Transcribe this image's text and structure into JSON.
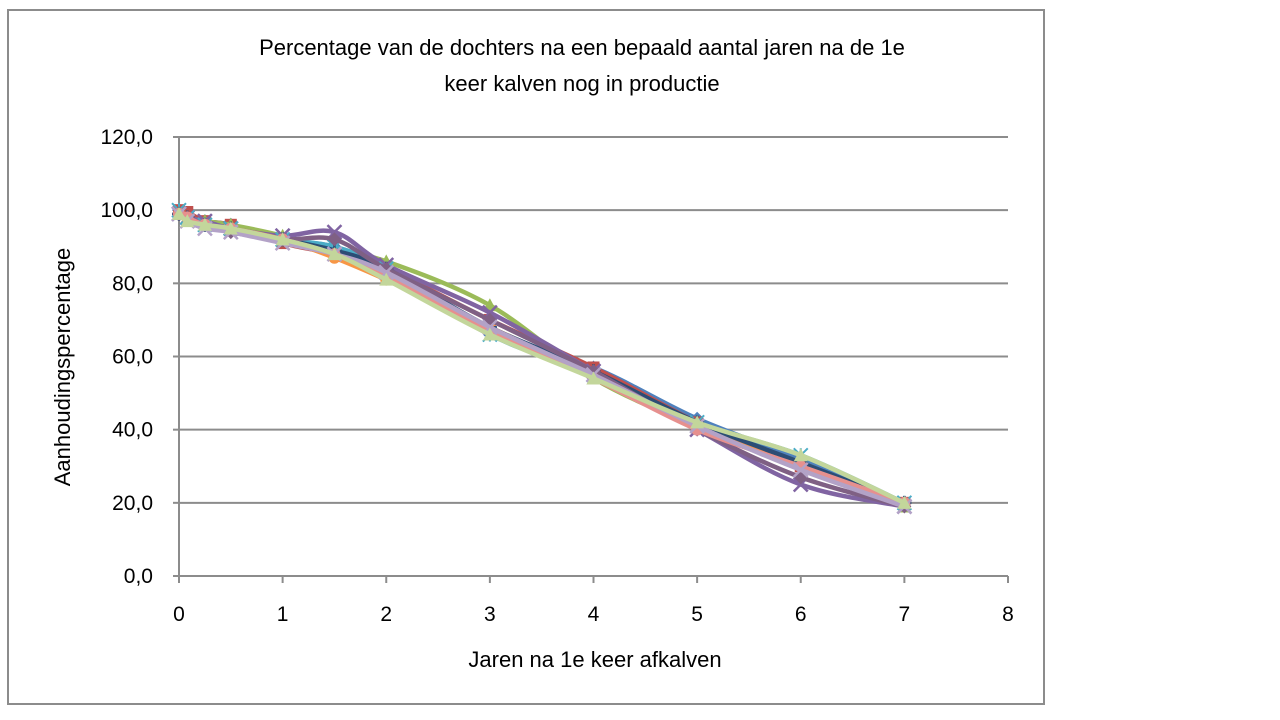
{
  "chart_data": {
    "type": "line",
    "title_lines": [
      "Percentage van de dochters na een bepaald aantal jaren na de 1e",
      "keer kalven nog in productie"
    ],
    "xlabel": "Jaren na 1e keer afkalven",
    "ylabel": "Aanhoudingspercentage",
    "xlim": [
      0,
      8
    ],
    "ylim": [
      0,
      120
    ],
    "x_ticks": [
      "0",
      "1",
      "2",
      "3",
      "4",
      "5",
      "6",
      "7",
      "8"
    ],
    "y_ticks": [
      "0,0",
      "20,0",
      "40,0",
      "60,0",
      "80,0",
      "100,0",
      "120,0"
    ],
    "grid": "horizontal",
    "legend": "none",
    "series": [
      {
        "color": "#4f81bd",
        "marker": "diamond",
        "x": [
          0,
          0.08,
          0.25,
          0.5,
          1,
          1.5,
          2,
          3,
          4,
          5,
          6,
          7
        ],
        "y": [
          100,
          99,
          97,
          96,
          92,
          90,
          84,
          66,
          57,
          43,
          32,
          20
        ]
      },
      {
        "color": "#c0504d",
        "marker": "square",
        "x": [
          0,
          0.08,
          0.25,
          0.5,
          1,
          1.5,
          2,
          3,
          4,
          5,
          6,
          7
        ],
        "y": [
          100,
          99.5,
          97,
          96,
          91,
          88,
          84,
          70,
          57,
          42,
          30,
          20
        ]
      },
      {
        "color": "#9bbb59",
        "marker": "triangle",
        "x": [
          0,
          0.08,
          0.25,
          0.5,
          1,
          1.5,
          2,
          3,
          4,
          5,
          6,
          7
        ],
        "y": [
          99,
          98,
          97,
          96,
          93,
          89,
          86,
          74,
          54,
          41,
          31,
          19
        ]
      },
      {
        "color": "#8064a2",
        "marker": "x",
        "x": [
          0,
          0.08,
          0.25,
          0.5,
          1,
          1.5,
          2,
          3,
          4,
          5,
          6,
          7
        ],
        "y": [
          99,
          98,
          97,
          95,
          93,
          94,
          85,
          72,
          56,
          40,
          25,
          19
        ]
      },
      {
        "color": "#4bacc6",
        "marker": "star",
        "x": [
          0,
          0.08,
          0.25,
          0.5,
          1,
          1.5,
          2,
          3,
          4,
          5,
          6,
          7
        ],
        "y": [
          100,
          98,
          96,
          95,
          92,
          90,
          84,
          66,
          55,
          42,
          33,
          20
        ]
      },
      {
        "color": "#f79646",
        "marker": "circle",
        "x": [
          0,
          0.08,
          0.25,
          0.5,
          1,
          1.5,
          2,
          3,
          4,
          5,
          6,
          7
        ],
        "y": [
          99,
          98,
          96,
          95,
          92,
          87,
          81,
          68,
          55,
          41,
          30,
          20
        ]
      },
      {
        "color": "#2c4d75",
        "marker": "plus",
        "x": [
          0,
          0.08,
          0.25,
          0.5,
          1,
          1.5,
          2,
          3,
          4,
          5,
          6,
          7
        ],
        "y": [
          99,
          98,
          96,
          95,
          92,
          89,
          84,
          68,
          56,
          42,
          31,
          20
        ]
      },
      {
        "color": "#7f6084",
        "marker": "diamond",
        "x": [
          0,
          0.08,
          0.25,
          0.5,
          1,
          1.5,
          2,
          3,
          4,
          5,
          6,
          7
        ],
        "y": [
          99,
          98,
          96,
          94,
          92,
          92,
          84,
          70,
          56,
          40,
          27,
          19
        ]
      },
      {
        "color": "#e6908e",
        "marker": "circle",
        "x": [
          0,
          0.08,
          0.25,
          0.5,
          1,
          1.5,
          2,
          3,
          4,
          5,
          6,
          7
        ],
        "y": [
          99,
          98,
          96,
          95,
          92,
          88,
          82,
          67,
          54,
          40,
          30,
          20
        ]
      },
      {
        "color": "#b3a2c7",
        "marker": "x",
        "x": [
          0,
          0.08,
          0.25,
          0.5,
          1,
          1.5,
          2,
          3,
          4,
          5,
          6,
          7
        ],
        "y": [
          99,
          97,
          95,
          94,
          91,
          88,
          83,
          68,
          55,
          41,
          29,
          19
        ]
      },
      {
        "color": "#c3d69b",
        "marker": "triangle",
        "x": [
          0,
          0.08,
          0.25,
          0.5,
          1,
          1.5,
          2,
          3,
          4,
          5,
          6,
          7
        ],
        "y": [
          99,
          97,
          96,
          95,
          92,
          88,
          81,
          66,
          54,
          42,
          33,
          20
        ]
      }
    ]
  }
}
